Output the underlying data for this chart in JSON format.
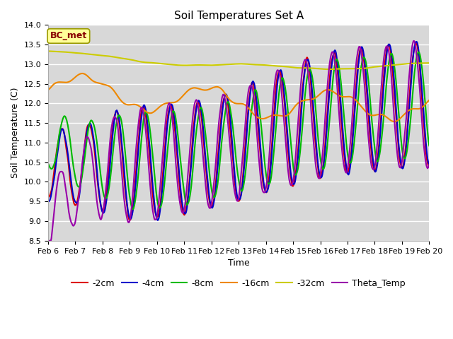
{
  "title": "Soil Temperatures Set A",
  "xlabel": "Time",
  "ylabel": "Soil Temperature (C)",
  "annotation": "BC_met",
  "ylim_min": 8.5,
  "ylim_max": 14.0,
  "xlim_min": 0,
  "xlim_max": 14,
  "xtick_labels": [
    "Feb 6",
    "Feb 7",
    "Feb 8",
    "Feb 9",
    "Feb 10",
    "Feb 11",
    "Feb 12",
    "Feb 13",
    "Feb 14",
    "Feb 15",
    "Feb 16",
    "Feb 17",
    "Feb 18",
    "Feb 19",
    "Feb 20"
  ],
  "yticks": [
    8.5,
    9.0,
    9.5,
    10.0,
    10.5,
    11.0,
    11.5,
    12.0,
    12.5,
    13.0,
    13.5,
    14.0
  ],
  "series_colors": {
    "-2cm": "#dd0000",
    "-4cm": "#0000cc",
    "-8cm": "#00bb00",
    "-16cm": "#ee8800",
    "-32cm": "#cccc00",
    "Theta_Temp": "#9900aa"
  },
  "series_lw": 1.5,
  "plot_bg_color": "#d8d8d8",
  "fig_bg_color": "#ffffff",
  "grid_color": "#ffffff",
  "title_fontsize": 11,
  "axis_label_fontsize": 9,
  "tick_fontsize": 8,
  "legend_fontsize": 9
}
